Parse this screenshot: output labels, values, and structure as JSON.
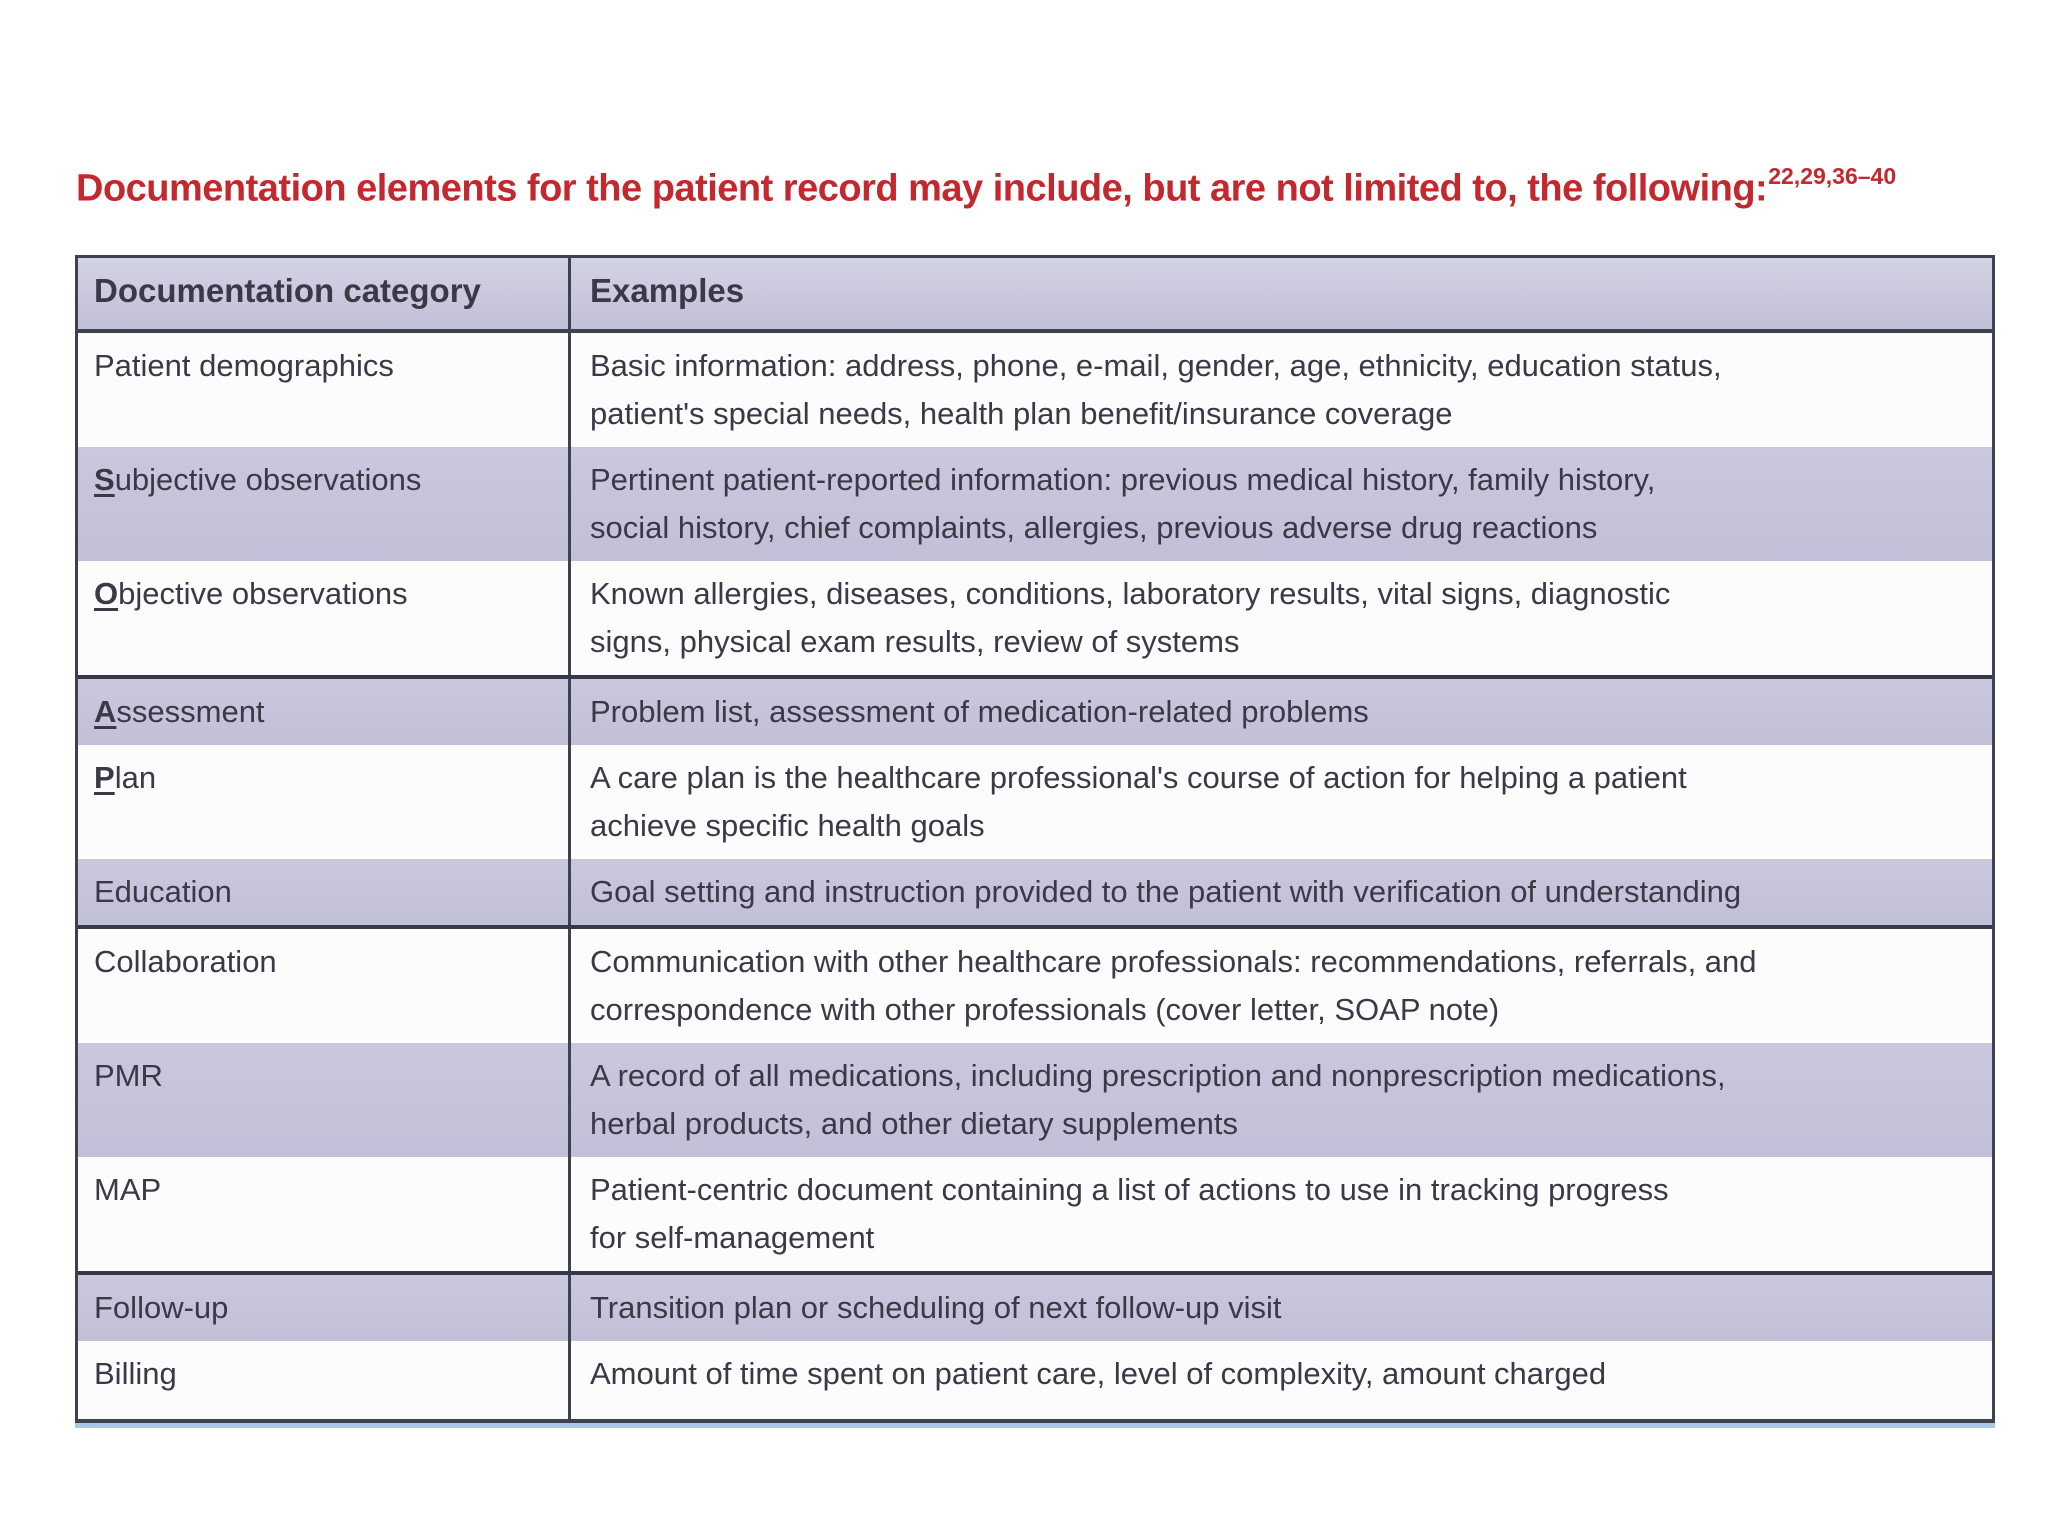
{
  "title": {
    "text": "Documentation elements for the patient record may include, but are not limited to, the following:",
    "superscript": "22,29,36–40",
    "color": "#c3282e"
  },
  "table": {
    "headers": {
      "category": "Documentation category",
      "examples": "Examples"
    },
    "colors": {
      "shaded_row": "#c5c3da",
      "white_row": "#fcfcfd",
      "border": "#3e4150",
      "text": "#3a3a46",
      "bottom_accent": "#a5c8e4"
    },
    "rows": [
      {
        "category_lead": "",
        "category_rest": "Patient demographics",
        "example": "Basic information: address, phone, e-mail, gender, age, ethnicity, education status,\npatient's special needs, health plan benefit/insurance coverage"
      },
      {
        "category_lead": "S",
        "category_rest": "ubjective observations",
        "example": "Pertinent patient-reported information: previous medical history, family history,\nsocial history, chief complaints, allergies, previous adverse drug reactions"
      },
      {
        "category_lead": "O",
        "category_rest": "bjective observations",
        "example": "Known allergies, diseases, conditions, laboratory results, vital signs, diagnostic\nsigns, physical exam results, review of systems"
      },
      {
        "category_lead": "A",
        "category_rest": "ssessment",
        "example": "Problem list, assessment of medication-related problems"
      },
      {
        "category_lead": "P",
        "category_rest": "lan",
        "example": "A care plan is the healthcare professional's course of action for helping a patient\nachieve specific health goals"
      },
      {
        "category_lead": "",
        "category_rest": "Education",
        "example": "Goal setting and instruction provided to the patient with verification of understanding"
      },
      {
        "category_lead": "",
        "category_rest": "Collaboration",
        "example": "Communication with other healthcare professionals: recommendations, referrals, and\ncorrespondence with other professionals (cover letter, SOAP note)"
      },
      {
        "category_lead": "",
        "category_rest": "PMR",
        "example": "A record of all medications, including prescription and nonprescription medications,\nherbal products, and other dietary supplements"
      },
      {
        "category_lead": "",
        "category_rest": "MAP",
        "example": "Patient-centric document containing a list of actions to use in tracking progress\nfor self-management"
      },
      {
        "category_lead": "",
        "category_rest": "Follow-up",
        "example": "Transition plan or scheduling of next follow-up visit"
      },
      {
        "category_lead": "",
        "category_rest": "Billing",
        "example": "Amount of time spent on patient care, level of complexity, amount charged"
      }
    ]
  }
}
